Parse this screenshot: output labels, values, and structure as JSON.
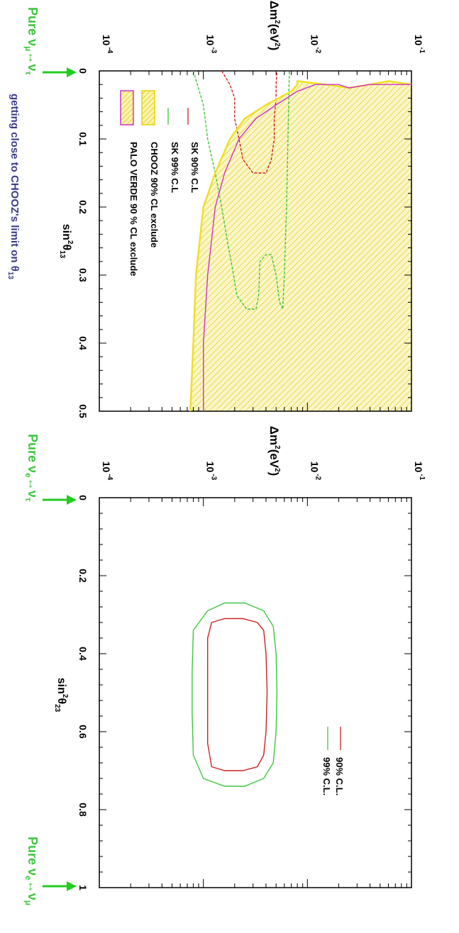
{
  "colors": {
    "sk90": "#cc2222",
    "sk99": "#3ec63e",
    "chooz": "#f0e020",
    "paloverde": "#cc33cc",
    "arrow": "#22cc22",
    "note": "#3a3a8c"
  },
  "chart_data": [
    {
      "type": "line",
      "orientation": "rotated 90 degrees clockwise",
      "xlabel": "sin²θ₁₃",
      "ylabel": "Δm²(eV²)",
      "ylabel_base": "Δm",
      "ylabel_sup1": "2",
      "ylabel_mid": "(eV",
      "ylabel_sup2": "2",
      "ylabel_end": ")",
      "xlabel_base": "sin",
      "xlabel_sup": "2",
      "xlabel_theta": "θ",
      "xlabel_sub": "13",
      "xlim": [
        0,
        0.5
      ],
      "ylim": [
        0.0001,
        0.1
      ],
      "yscale": "log",
      "x_ticks": [
        "0",
        "0.1",
        "0.2",
        "0.3",
        "0.4",
        "0.5"
      ],
      "y_tick_base": "10",
      "y_tick_exps": [
        "-4",
        "-3",
        "-2",
        "-1"
      ],
      "legend": [
        {
          "label": "SK 90% C.L",
          "style": "line",
          "color_key": "sk90"
        },
        {
          "label": "SK 99% C.L",
          "style": "line",
          "color_key": "sk99"
        },
        {
          "label": "CHOOZ 90% CL exclude",
          "style": "hatched",
          "color_key": "chooz"
        },
        {
          "label": "PALO VERDE 90 % CL exclude",
          "style": "hatched",
          "color_key": "paloverde"
        }
      ],
      "series": [
        {
          "name": "SK 90% C.L",
          "color_key": "sk90",
          "dashed": true,
          "points": [
            [
              0,
              0.0015
            ],
            [
              0.02,
              0.0018
            ],
            [
              0.04,
              0.002
            ],
            [
              0.07,
              0.002
            ],
            [
              0.1,
              0.0022
            ],
            [
              0.13,
              0.0024
            ],
            [
              0.15,
              0.003
            ],
            [
              0.15,
              0.004
            ],
            [
              0.13,
              0.0045
            ],
            [
              0.1,
              0.0048
            ],
            [
              0.07,
              0.0048
            ],
            [
              0.04,
              0.005
            ],
            [
              0.02,
              0.005
            ],
            [
              0,
              0.0051
            ]
          ]
        },
        {
          "name": "SK 99% C.L",
          "color_key": "sk99",
          "dashed": true,
          "points": [
            [
              0,
              0.0008
            ],
            [
              0.05,
              0.001
            ],
            [
              0.1,
              0.0011
            ],
            [
              0.15,
              0.0013
            ],
            [
              0.2,
              0.0015
            ],
            [
              0.25,
              0.0017
            ],
            [
              0.29,
              0.0019
            ],
            [
              0.33,
              0.0021
            ],
            [
              0.35,
              0.0026
            ],
            [
              0.35,
              0.0032
            ],
            [
              0.33,
              0.0034
            ],
            [
              0.28,
              0.0035
            ],
            [
              0.27,
              0.004
            ],
            [
              0.27,
              0.0045
            ],
            [
              0.3,
              0.005
            ],
            [
              0.34,
              0.0054
            ],
            [
              0.35,
              0.0058
            ],
            [
              0.3,
              0.006
            ],
            [
              0.2,
              0.0063
            ],
            [
              0.1,
              0.0065
            ],
            [
              0.05,
              0.0066
            ],
            [
              0,
              0.0067
            ]
          ]
        },
        {
          "name": "CHOOZ 90% CL exclude",
          "color_key": "chooz",
          "dashed": false,
          "points": [
            [
              0.5,
              0.00075
            ],
            [
              0.4,
              0.0008
            ],
            [
              0.3,
              0.00085
            ],
            [
              0.2,
              0.001
            ],
            [
              0.15,
              0.0013
            ],
            [
              0.1,
              0.0018
            ],
            [
              0.07,
              0.0025
            ],
            [
              0.05,
              0.004
            ],
            [
              0.03,
              0.007
            ],
            [
              0.02,
              0.008
            ],
            [
              0.015,
              0.008
            ],
            [
              0.02,
              0.015
            ],
            [
              0.025,
              0.025
            ],
            [
              0.02,
              0.04
            ],
            [
              0.015,
              0.06
            ],
            [
              0.02,
              0.1
            ]
          ]
        },
        {
          "name": "PALO VERDE 90 % CL exclude",
          "color_key": "paloverde",
          "dashed": false,
          "points": [
            [
              0.5,
              0.001
            ],
            [
              0.4,
              0.001
            ],
            [
              0.3,
              0.0011
            ],
            [
              0.2,
              0.0013
            ],
            [
              0.15,
              0.0016
            ],
            [
              0.1,
              0.0022
            ],
            [
              0.07,
              0.0032
            ],
            [
              0.05,
              0.005
            ],
            [
              0.03,
              0.008
            ],
            [
              0.02,
              0.012
            ],
            [
              0.02,
              0.02
            ],
            [
              0.025,
              0.025
            ],
            [
              0.02,
              0.04
            ],
            [
              0.02,
              0.1
            ]
          ]
        }
      ],
      "annotations": {
        "left_arrow_label": "Pure ν_μ↔ν_τ",
        "left_arrow_base": "Pure ν",
        "left_arrow_sub1": "μ",
        "left_arrow_mid": "↔ν",
        "left_arrow_sub2": "τ",
        "bottom_note_main": "getting close to CHOOZ's limit on θ",
        "bottom_note_sub": "13"
      }
    },
    {
      "type": "line",
      "orientation": "rotated 90 degrees clockwise",
      "xlabel": "sin²θ₂₃",
      "ylabel": "Δm²(eV²)",
      "ylabel_base": "Δm",
      "ylabel_sup1": "2",
      "ylabel_mid": "(eV",
      "ylabel_sup2": "2",
      "ylabel_end": ")",
      "xlabel_base": "sin",
      "xlabel_sup": "2",
      "xlabel_theta": "θ",
      "xlabel_sub": "23",
      "xlim": [
        0,
        1
      ],
      "ylim": [
        0.0001,
        0.1
      ],
      "yscale": "log",
      "x_ticks": [
        "0",
        "0.2",
        "0.4",
        "0.6",
        "0.8",
        "1"
      ],
      "y_tick_base": "10",
      "y_tick_exps": [
        "-4",
        "-3",
        "-2",
        "-1"
      ],
      "legend": [
        {
          "label": "90% C.L.",
          "style": "line",
          "color_key": "sk90"
        },
        {
          "label": "99% C.L.",
          "style": "line",
          "color_key": "sk99"
        }
      ],
      "series": [
        {
          "name": "90% C.L.",
          "color_key": "sk90",
          "closed": true,
          "points": [
            [
              0.32,
              0.0012
            ],
            [
              0.36,
              0.0011
            ],
            [
              0.45,
              0.0011
            ],
            [
              0.55,
              0.0011
            ],
            [
              0.63,
              0.0011
            ],
            [
              0.69,
              0.0012
            ],
            [
              0.7,
              0.0016
            ],
            [
              0.7,
              0.0024
            ],
            [
              0.69,
              0.0033
            ],
            [
              0.66,
              0.0038
            ],
            [
              0.6,
              0.004
            ],
            [
              0.5,
              0.0041
            ],
            [
              0.4,
              0.004
            ],
            [
              0.34,
              0.0038
            ],
            [
              0.32,
              0.0033
            ],
            [
              0.31,
              0.0024
            ],
            [
              0.31,
              0.0016
            ]
          ]
        },
        {
          "name": "99% C.L.",
          "color_key": "sk99",
          "closed": true,
          "points": [
            [
              0.29,
              0.0011
            ],
            [
              0.34,
              0.0008
            ],
            [
              0.45,
              0.00078
            ],
            [
              0.55,
              0.00078
            ],
            [
              0.66,
              0.0008
            ],
            [
              0.72,
              0.001
            ],
            [
              0.74,
              0.0016
            ],
            [
              0.74,
              0.0025
            ],
            [
              0.72,
              0.0038
            ],
            [
              0.68,
              0.0047
            ],
            [
              0.6,
              0.005
            ],
            [
              0.5,
              0.0051
            ],
            [
              0.4,
              0.005
            ],
            [
              0.33,
              0.0047
            ],
            [
              0.29,
              0.0038
            ],
            [
              0.27,
              0.0025
            ],
            [
              0.27,
              0.0016
            ]
          ]
        }
      ],
      "annotations": {
        "left_arrow_base": "Pure ν",
        "left_arrow_sub1": "e",
        "left_arrow_mid": "↔ν",
        "left_arrow_sub2": "τ",
        "right_arrow_base": "Pure ν",
        "right_arrow_sub1": "e",
        "right_arrow_mid": "↔ν",
        "right_arrow_sub2": "μ"
      }
    }
  ]
}
